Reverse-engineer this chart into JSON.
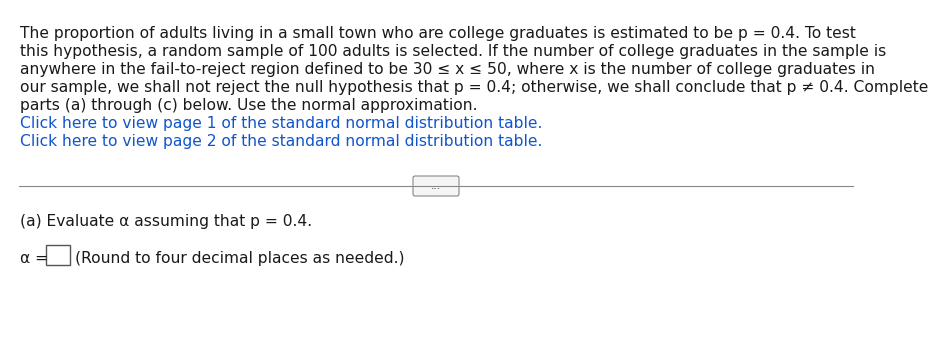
{
  "bg_color": "#ffffff",
  "text_color": "#1a1a1a",
  "link_color": "#1155cc",
  "main_text_lines": [
    "The proportion of adults living in a small town who are college graduates is estimated to be p = 0.4. To test",
    "this hypothesis, a random sample of 100 adults is selected. If the number of college graduates in the sample is",
    "anywhere in the fail-to-reject region defined to be 30 ≤ x ≤ 50, where x is the number of college graduates in",
    "our sample, we shall not reject the null hypothesis that p = 0.4; otherwise, we shall conclude that p ≠ 0.4. Complete",
    "parts (a) through (c) below. Use the normal approximation."
  ],
  "link1": "Click here to view page 1 of the standard normal distribution table.",
  "link2": "Click here to view page 2 of the standard normal distribution table.",
  "divider_label": "...",
  "part_a_label": "(a) Evaluate α assuming that p = 0.4.",
  "answer_prefix": "α =",
  "answer_hint": "(Round to four decimal places as needed.)",
  "font_size_main": 11.2
}
